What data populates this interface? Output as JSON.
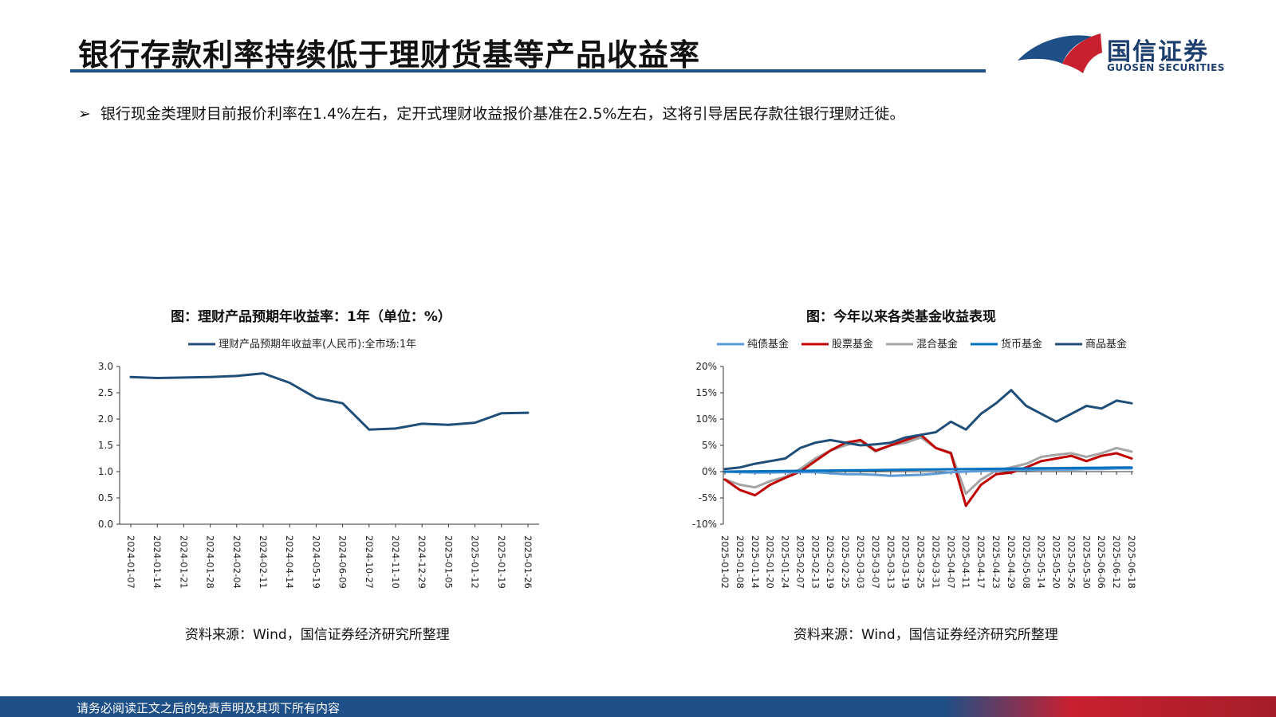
{
  "header": {
    "title": "银行存款利率持续低于理财货基等产品收益率",
    "logo_cn": "国信证券",
    "logo_en": "GUOSEN SECURITIES"
  },
  "bullet": {
    "mark": "➢",
    "text": "银行现金类理财目前报价利率在1.4%左右，定开式理财收益报价基准在2.5%左右，这将引导居民存款往银行理财迁徙。"
  },
  "footer": {
    "disclaimer": "请务必阅读正文之后的免责声明及其项下所有内容"
  },
  "colors": {
    "brand_blue": "#1e4f86",
    "brand_red": "#c8202f"
  },
  "chart_data": [
    {
      "type": "line",
      "title": "图：理财产品预期年收益率：1年（单位：%）",
      "source": "资料来源：Wind，国信证券经济研究所整理",
      "categories": [
        "2024-01-07",
        "2024-01-14",
        "2024-01-21",
        "2024-01-28",
        "2024-02-04",
        "2024-02-11",
        "2024-04-14",
        "2024-05-19",
        "2024-06-09",
        "2024-10-27",
        "2024-11-10",
        "2024-12-29",
        "2025-01-05",
        "2025-01-12",
        "2025-01-19",
        "2025-01-26"
      ],
      "series": [
        {
          "name": "理财产品预期年收益率(人民币):全市场:1年",
          "color": "#1f4e79",
          "values": [
            2.8,
            2.78,
            2.79,
            2.8,
            2.82,
            2.87,
            2.69,
            2.4,
            2.3,
            1.8,
            1.82,
            1.91,
            1.89,
            1.93,
            2.11,
            2.12
          ]
        }
      ],
      "ylim": [
        0,
        3.0
      ],
      "yticks": [
        "3.0",
        "2.5",
        "2.0",
        "1.5",
        "1.0",
        "0.5",
        "0.0"
      ],
      "ytick_values": [
        3.0,
        2.5,
        2.0,
        1.5,
        1.0,
        0.5,
        0.0
      ],
      "legend": "top-center",
      "grid": false
    },
    {
      "type": "line",
      "title": "图：今年以来各类基金收益表现",
      "source": "资料来源：Wind，国信证券经济研究所整理",
      "categories": [
        "2025-01-02",
        "2025-01-08",
        "2025-01-14",
        "2025-01-20",
        "2025-01-24",
        "2025-02-07",
        "2025-02-13",
        "2025-02-19",
        "2025-02-25",
        "2025-03-03",
        "2025-03-07",
        "2025-03-13",
        "2025-03-19",
        "2025-03-25",
        "2025-03-31",
        "2025-04-07",
        "2025-04-11",
        "2025-04-17",
        "2025-04-23",
        "2025-04-29",
        "2025-05-08",
        "2025-05-14",
        "2025-05-20",
        "2025-05-26",
        "2025-05-30",
        "2025-06-06",
        "2025-06-12",
        "2025-06-18"
      ],
      "series": [
        {
          "name": "纯债基金",
          "color": "#5b9bd5",
          "values": [
            0.0,
            -0.1,
            -0.2,
            -0.2,
            -0.1,
            -0.1,
            -0.1,
            -0.3,
            -0.5,
            -0.5,
            -0.6,
            -0.8,
            -0.7,
            -0.6,
            -0.4,
            -0.1,
            0.0,
            0.1,
            0.2,
            0.3,
            0.3,
            0.4,
            0.4,
            0.4,
            0.5,
            0.5,
            0.6,
            0.6
          ]
        },
        {
          "name": "股票基金",
          "color": "#c00000",
          "values": [
            -1.5,
            -3.5,
            -4.5,
            -2.5,
            -1.2,
            0.0,
            2.0,
            4.0,
            5.5,
            6.0,
            4.0,
            5.0,
            6.0,
            7.0,
            4.5,
            3.5,
            -6.5,
            -2.5,
            -0.5,
            -0.2,
            0.8,
            2.0,
            2.5,
            3.0,
            2.0,
            3.0,
            3.5,
            2.5
          ]
        },
        {
          "name": "混合基金",
          "color": "#a5a5a5",
          "values": [
            -1.5,
            -2.5,
            -3.0,
            -1.8,
            -1.0,
            0.5,
            2.5,
            4.0,
            5.0,
            5.8,
            3.8,
            5.0,
            5.5,
            6.5,
            4.5,
            3.6,
            -4.2,
            -1.5,
            0.2,
            0.8,
            1.5,
            2.8,
            3.2,
            3.5,
            2.8,
            3.5,
            4.5,
            3.8
          ]
        },
        {
          "name": "货币基金",
          "color": "#0070c0",
          "values": [
            0.0,
            0.03,
            0.06,
            0.09,
            0.12,
            0.15,
            0.18,
            0.21,
            0.24,
            0.27,
            0.3,
            0.33,
            0.36,
            0.39,
            0.42,
            0.45,
            0.48,
            0.51,
            0.54,
            0.57,
            0.6,
            0.63,
            0.66,
            0.69,
            0.72,
            0.75,
            0.78,
            0.81
          ]
        },
        {
          "name": "商品基金",
          "color": "#1f4e79",
          "values": [
            0.5,
            0.8,
            1.5,
            2.0,
            2.5,
            4.5,
            5.5,
            6.0,
            5.5,
            5.0,
            5.2,
            5.5,
            6.5,
            7.0,
            7.5,
            9.5,
            8.0,
            11.0,
            13.0,
            15.5,
            12.5,
            11.0,
            9.5,
            11.0,
            12.5,
            12.0,
            13.5,
            13.0
          ]
        }
      ],
      "ylim": [
        -10,
        20
      ],
      "yticks": [
        "20%",
        "15%",
        "10%",
        "5%",
        "0%",
        "-5%",
        "-10%"
      ],
      "ytick_values": [
        20,
        15,
        10,
        5,
        0,
        -5,
        -10
      ],
      "legend": "top",
      "grid": false
    }
  ]
}
